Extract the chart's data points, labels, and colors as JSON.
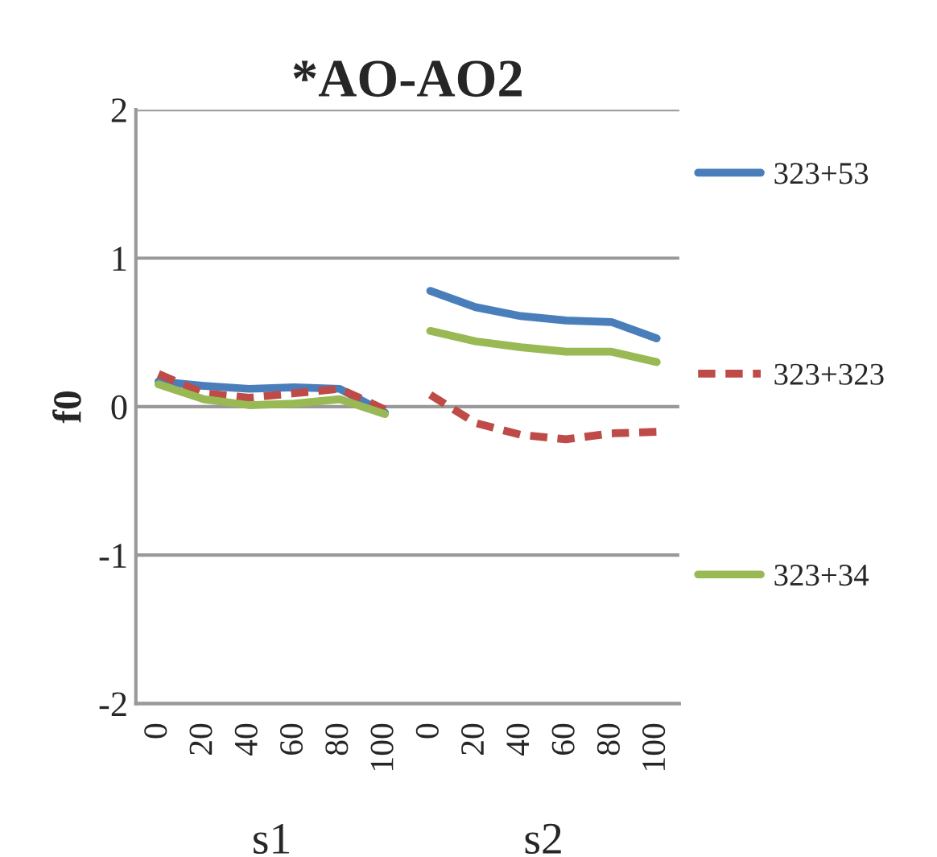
{
  "chart_data": {
    "type": "line",
    "title": "*AO-AO2",
    "ylabel": "f0",
    "categories": [
      "0",
      "20",
      "40",
      "60",
      "80",
      "100",
      "0",
      "20",
      "40",
      "60",
      "80",
      "100"
    ],
    "annotations": [
      "s1",
      "s2"
    ],
    "series": [
      {
        "name": "323+53",
        "color": "#4a7ebb",
        "line_style": "solid",
        "values": [
          0.17,
          0.14,
          0.12,
          0.13,
          0.12,
          -0.04,
          0.78,
          0.67,
          0.61,
          0.58,
          0.57,
          0.46
        ]
      },
      {
        "name": "323+323",
        "color": "#be4b48",
        "line_style": "dashed",
        "values": [
          0.22,
          0.09,
          0.06,
          0.09,
          0.12,
          -0.02,
          0.08,
          -0.11,
          -0.19,
          -0.22,
          -0.18,
          -0.17
        ]
      },
      {
        "name": "323+34",
        "color": "#98b954",
        "line_style": "solid",
        "values": [
          0.15,
          0.05,
          0.01,
          0.02,
          0.05,
          -0.05,
          0.51,
          0.44,
          0.4,
          0.37,
          0.37,
          0.3
        ]
      }
    ],
    "ylim": [
      -2,
      2
    ],
    "yticks": [
      -2,
      -1,
      0,
      1,
      2
    ],
    "grid": "y",
    "legend": "right",
    "marker": "none"
  }
}
